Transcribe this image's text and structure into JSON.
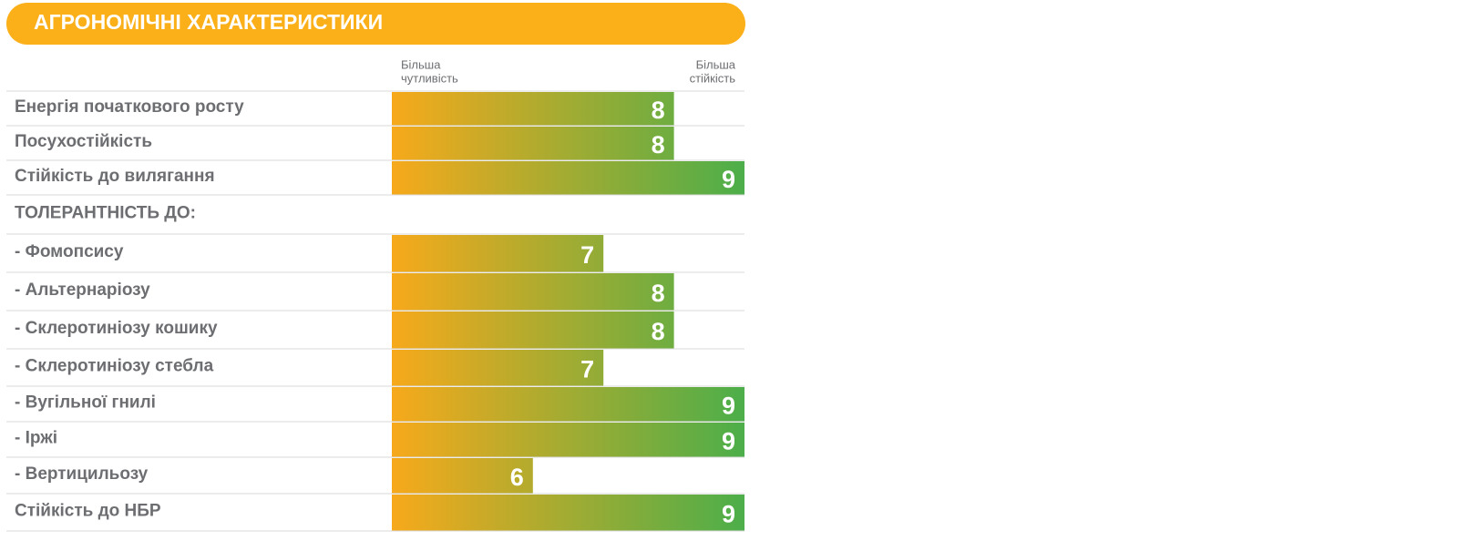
{
  "chart_data": {
    "type": "bar",
    "orientation": "horizontal",
    "title": "АГРОНОМІЧНІ ХАРАКТЕРИСТИКИ",
    "x_label_left": [
      "Більша",
      "чутливість"
    ],
    "x_label_right": [
      "Більша",
      "стійкість"
    ],
    "categories": [
      "Енергія початкового росту",
      "Посухостійкість",
      "Стійкість до вилягання",
      "ТОЛЕРАНТНІСТЬ ДО:",
      "- Фомопсису",
      "- Альтернаріозу",
      "- Склеротиніозу кошику",
      "- Склеротиніозу стебла",
      "- Вугільної гнилі",
      "- Іржі",
      "- Вертицильозу",
      "Стійкість до НБР"
    ],
    "values": [
      8,
      8,
      9,
      null,
      7,
      8,
      8,
      7,
      9,
      9,
      6,
      9
    ],
    "xlim": [
      4,
      9
    ],
    "colors": [
      "#f7a91b",
      "#4cae4a"
    ],
    "title_color": "#fbb01a"
  }
}
